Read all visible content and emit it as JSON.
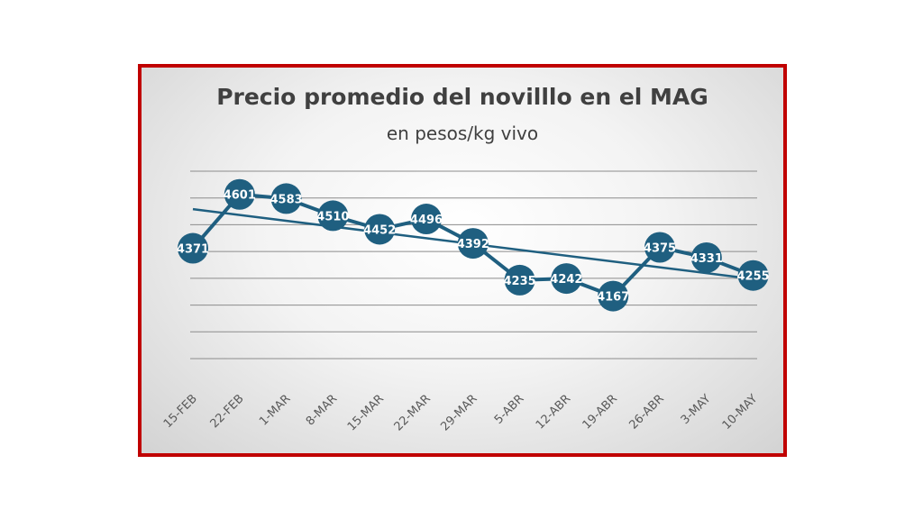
{
  "chart_data": {
    "type": "line",
    "title": "Precio promedio del novilllo en el MAG",
    "subtitle": "en pesos/kg vivo",
    "categories": [
      "15-FEB",
      "22-FEB",
      "1-MAR",
      "8-MAR",
      "15-MAR",
      "22-MAR",
      "29-MAR",
      "5-ABR",
      "12-ABR",
      "19-ABR",
      "26-ABR",
      "3-MAY",
      "10-MAY"
    ],
    "series": [
      {
        "values": [
          4371,
          4601,
          4583,
          4510,
          4452,
          4496,
          4392,
          4235,
          4242,
          4167,
          4375,
          4331,
          4255
        ]
      }
    ],
    "trendline": {
      "type": "linear",
      "start": 4538,
      "end": 4240
    },
    "ylim": [
      3900,
      4700
    ],
    "grid": true,
    "data_labels": true,
    "colors": {
      "series": "#1f5f80",
      "frame": "#c00000",
      "grid": "#8c8c8c"
    }
  }
}
